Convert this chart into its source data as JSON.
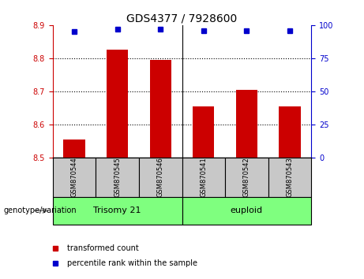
{
  "title": "GDS4377 / 7928600",
  "samples": [
    "GSM870544",
    "GSM870545",
    "GSM870546",
    "GSM870541",
    "GSM870542",
    "GSM870543"
  ],
  "bar_values": [
    8.555,
    8.825,
    8.795,
    8.655,
    8.705,
    8.655
  ],
  "percentile_values": [
    95,
    97,
    97,
    96,
    96,
    96
  ],
  "bar_color": "#cc0000",
  "dot_color": "#0000cc",
  "ylim_left": [
    8.5,
    8.9
  ],
  "ylim_right": [
    0,
    100
  ],
  "yticks_left": [
    8.5,
    8.6,
    8.7,
    8.8,
    8.9
  ],
  "yticks_right": [
    0,
    25,
    50,
    75,
    100
  ],
  "grid_ticks": [
    8.6,
    8.7,
    8.8
  ],
  "groups": [
    {
      "label": "Trisomy 21",
      "start": 0,
      "end": 3
    },
    {
      "label": "euploid",
      "start": 3,
      "end": 6
    }
  ],
  "legend_items": [
    {
      "label": "transformed count",
      "color": "#cc0000"
    },
    {
      "label": "percentile rank within the sample",
      "color": "#0000cc"
    }
  ],
  "xlabel_group": "genotype/variation",
  "bar_width": 0.5,
  "bar_base": 8.5,
  "background_xticklabel": "#c8c8c8",
  "background_group": "#7fff7f",
  "title_fontsize": 10,
  "axis_fontsize": 7,
  "tick_fontsize": 7,
  "legend_fontsize": 7,
  "sample_fontsize": 6,
  "group_fontsize": 8
}
